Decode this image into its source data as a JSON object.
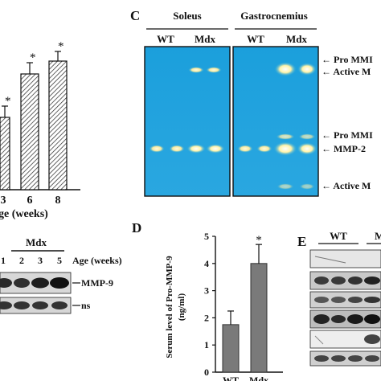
{
  "panel_a": {
    "x_ticks": [
      "3",
      "6",
      "8"
    ],
    "x_axis_fragment": "ge (weeks)",
    "significance": "*",
    "bar_values_visible": [
      {
        "x": "3",
        "value": 0.57
      },
      {
        "x": "6",
        "value": 0.82
      },
      {
        "x": "8",
        "value": 0.88
      }
    ]
  },
  "panel_b": {
    "group_label": "Mdx",
    "lane_labels": [
      "1",
      "2",
      "3",
      "5"
    ],
    "age_label": "Age (weeks)",
    "band_labels": [
      "MMP-9",
      "ns"
    ]
  },
  "panel_c": {
    "letter": "C",
    "tissue_left": "Soleus",
    "tissue_right": "Gastrocnemius",
    "group_wt": "WT",
    "group_mdx": "Mdx",
    "band_labels": [
      "Pro MMI",
      "Active M",
      "Pro MMI",
      "MMP-2",
      "Active M"
    ],
    "gel_color": "#1aa2df"
  },
  "panel_d": {
    "letter": "D",
    "ylabel_line1": "Serum level of Pro-MMP-9",
    "ylabel_line2": "(ng/ml)",
    "significance": "*"
  },
  "panel_e": {
    "letter": "E",
    "group_wt": "WT",
    "group_m": "M"
  },
  "chart_data": {
    "type": "bar",
    "categories": [
      "WT",
      "Mdx"
    ],
    "values": [
      1.75,
      4.0
    ],
    "errors": [
      0.5,
      0.7
    ],
    "ylim": [
      0,
      5
    ],
    "yticks": [
      0,
      1,
      2,
      3,
      4,
      5
    ],
    "colors": [
      "#7a7a7a",
      "#7a7a7a"
    ]
  }
}
